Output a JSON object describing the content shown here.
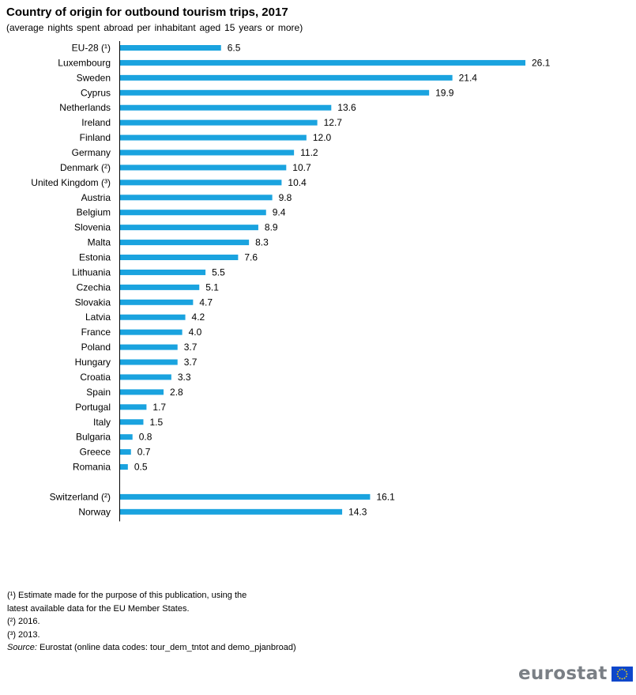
{
  "chart_data": {
    "type": "bar",
    "orientation": "horizontal",
    "title": "Country of origin for outbound tourism trips, 2017",
    "subtitle": "(average nights spent abroad per inhabitant aged 15 years or more)",
    "bar_color": "#1aa3df",
    "xlim": [
      0,
      26.1
    ],
    "grid": false,
    "legend": "none",
    "groups": [
      {
        "categories": [
          "EU-28 (¹)",
          "Luxembourg",
          "Sweden",
          "Cyprus",
          "Netherlands",
          "Ireland",
          "Finland",
          "Germany",
          "Denmark (²)",
          "United Kingdom (³)",
          "Austria",
          "Belgium",
          "Slovenia",
          "Malta",
          "Estonia",
          "Lithuania",
          "Czechia",
          "Slovakia",
          "Latvia",
          "France",
          "Poland",
          "Hungary",
          "Croatia",
          "Spain",
          "Portugal",
          "Italy",
          "Bulgaria",
          "Greece",
          "Romania"
        ],
        "values": [
          6.5,
          26.1,
          21.4,
          19.9,
          13.6,
          12.7,
          12.0,
          11.2,
          10.7,
          10.4,
          9.8,
          9.4,
          8.9,
          8.3,
          7.6,
          5.5,
          5.1,
          4.7,
          4.2,
          4.0,
          3.7,
          3.7,
          3.3,
          2.8,
          1.7,
          1.5,
          0.8,
          0.7,
          0.5
        ],
        "labels": [
          "6.5",
          "26.1",
          "21.4",
          "19.9",
          "13.6",
          "12.7",
          "12.0",
          "11.2",
          "10.7",
          "10.4",
          "9.8",
          "9.4",
          "8.9",
          "8.3",
          "7.6",
          "5.5",
          "5.1",
          "4.7",
          "4.2",
          "4.0",
          "3.7",
          "3.7",
          "3.3",
          "2.8",
          "1.7",
          "1.5",
          "0.8",
          "0.7",
          "0.5"
        ]
      },
      {
        "categories": [
          "Switzerland (²)",
          "Norway"
        ],
        "values": [
          16.1,
          14.3
        ],
        "labels": [
          "16.1",
          "14.3"
        ]
      }
    ]
  },
  "footnotes": {
    "note1_line1": "(¹) Estimate made for the purpose of this publication, using the",
    "note1_line2": "latest available data for the EU Member States.",
    "note2": "(²) 2016.",
    "note3": "(³) 2013.",
    "source_label": "Source:",
    "source_text": " Eurostat (online data codes: tour_dem_tntot and demo_pjanbroad)"
  },
  "logo": {
    "text": "eurostat",
    "flag_color": "#0e47cb",
    "star_color": "#ffde00"
  }
}
